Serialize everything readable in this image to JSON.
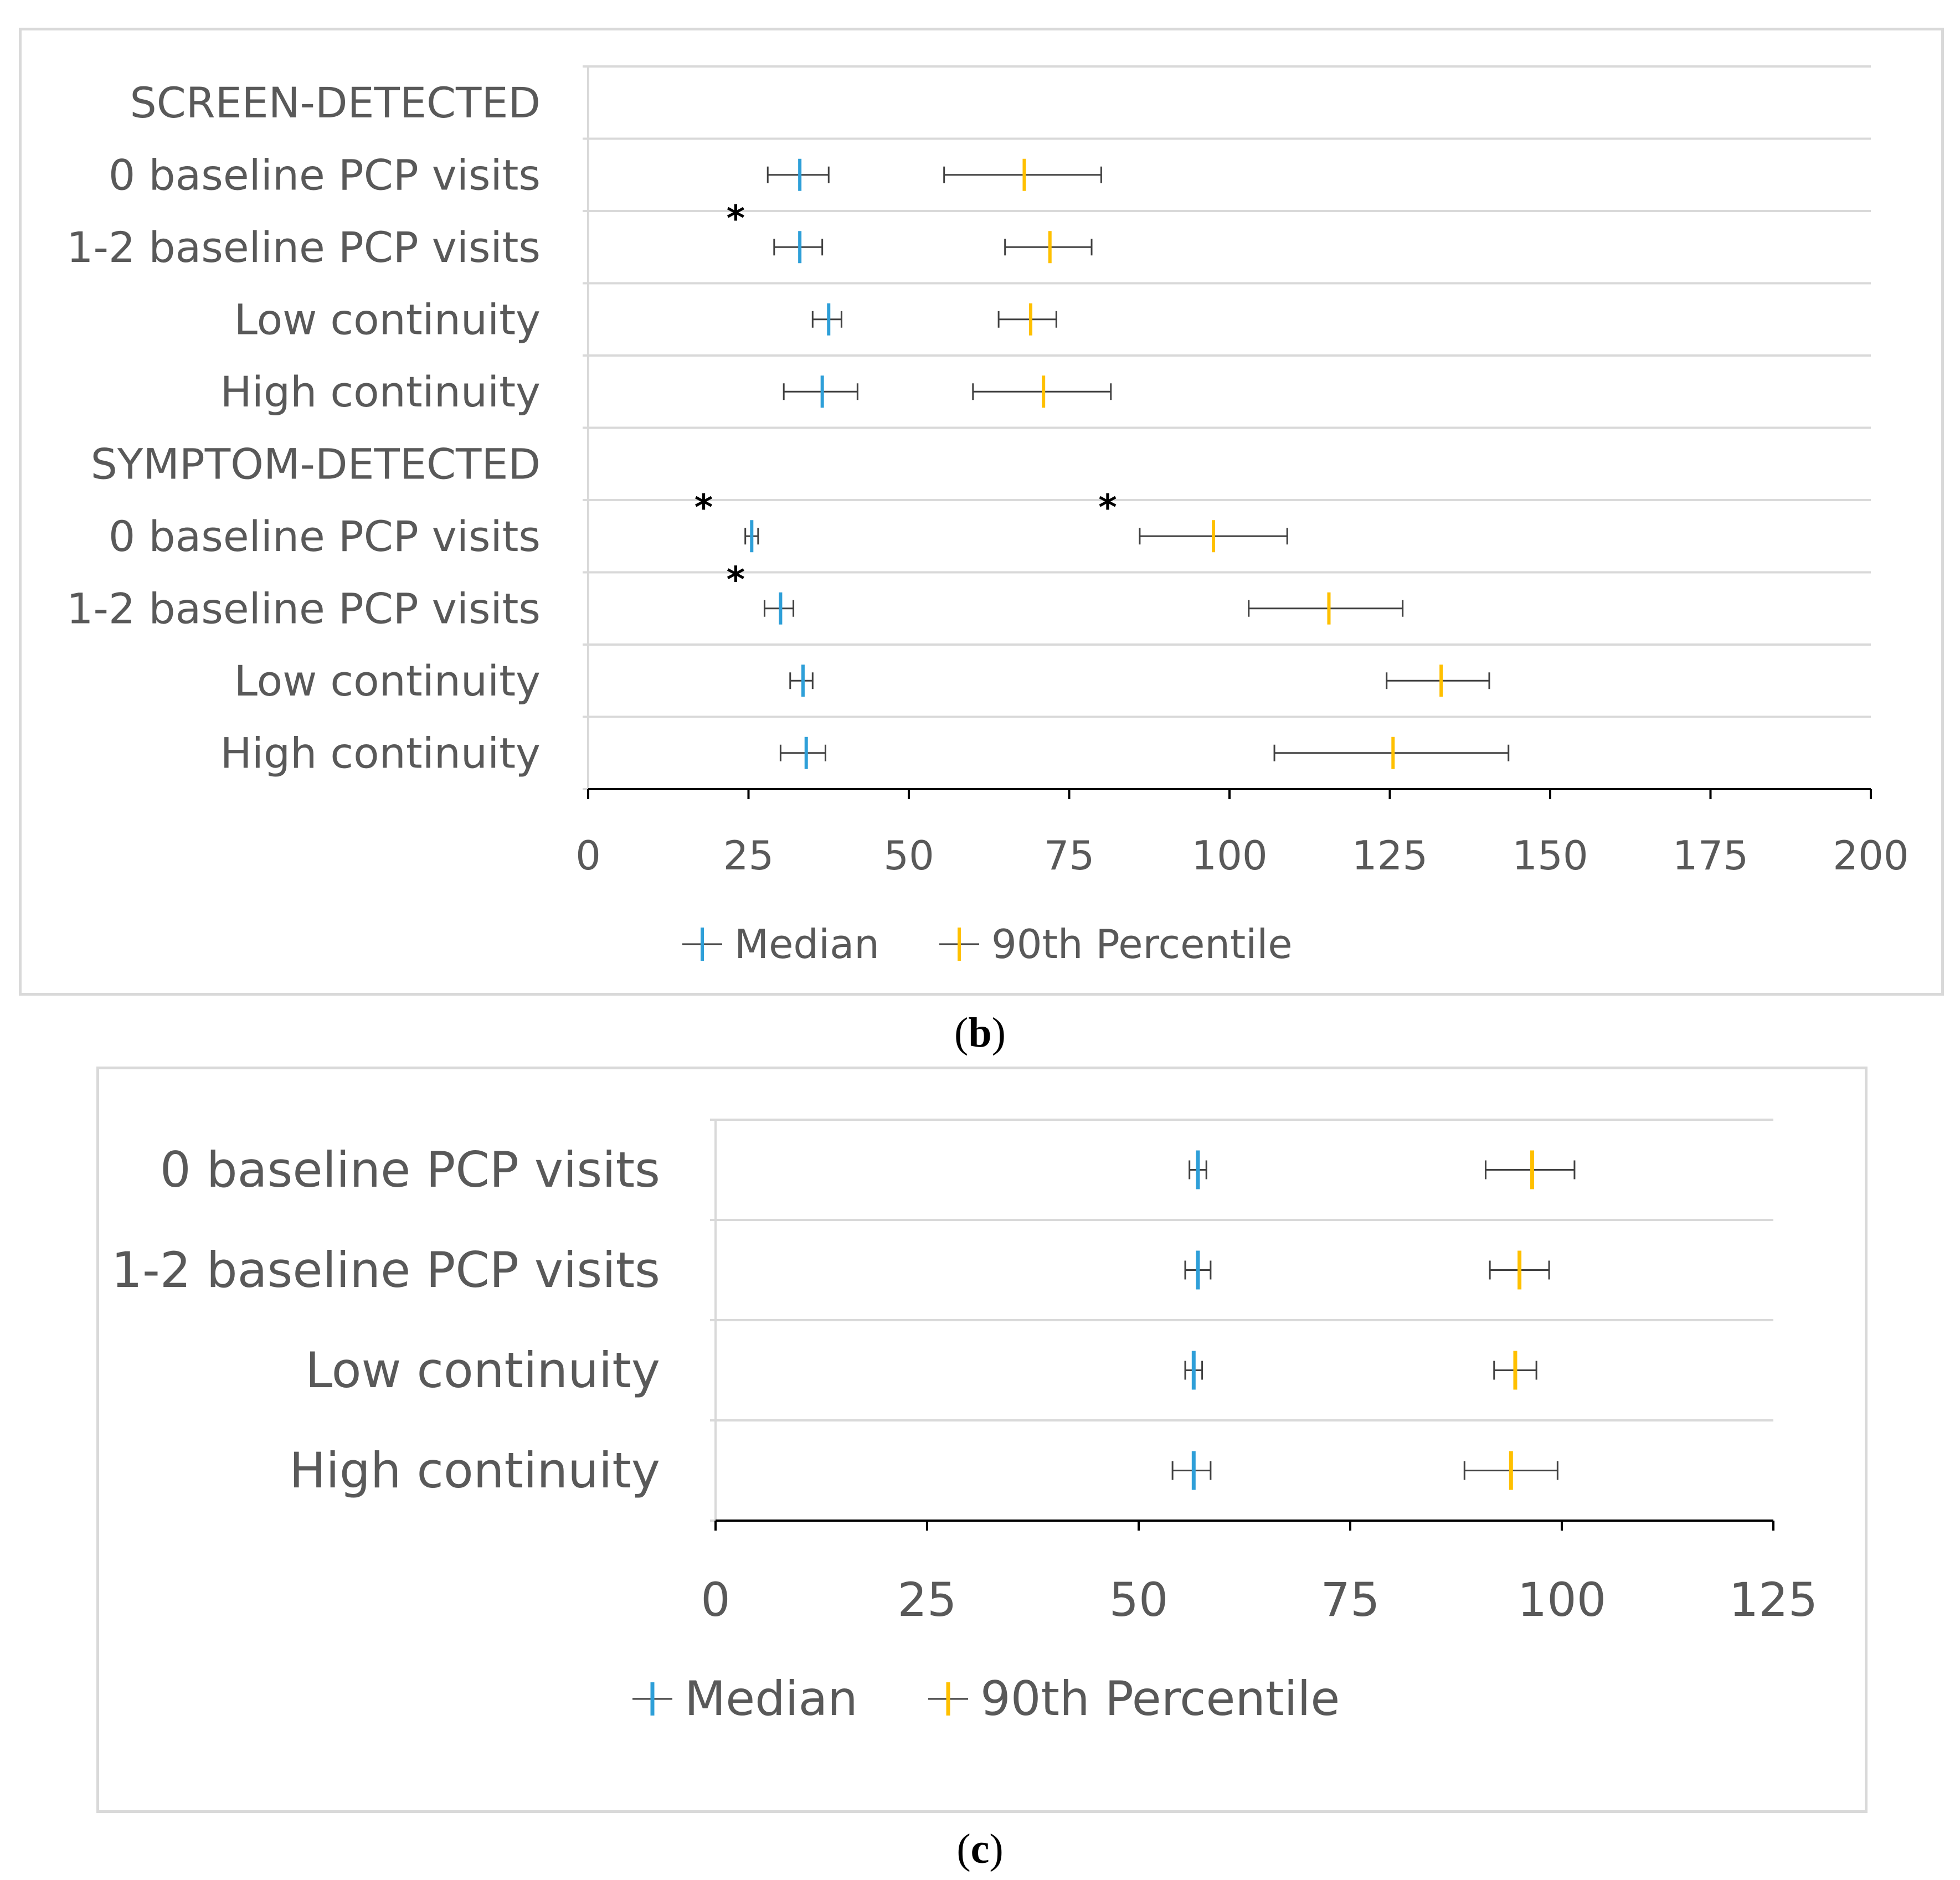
{
  "captions": {
    "b": "b",
    "c": "c"
  },
  "colors": {
    "median": "#2e9fd8",
    "percentile90": "#ffc000",
    "error_bar": "#404040",
    "grid": "#d9d9d9",
    "axis": "#000000",
    "text": "#595959"
  },
  "chart_data": [
    {
      "id": "b",
      "type": "scatter",
      "orientation": "horizontal",
      "categories": [
        "SCREEN-DETECTED",
        "0 baseline PCP visits",
        "1-2 baseline PCP visits",
        "Low continuity",
        "High continuity",
        "SYMPTOM-DETECTED",
        "0 baseline PCP visits",
        "1-2 baseline PCP visits",
        "Low continuity",
        "High continuity"
      ],
      "xlim": [
        0,
        200
      ],
      "xticks": [
        0,
        25,
        50,
        75,
        100,
        125,
        150,
        175,
        200
      ],
      "legend": {
        "position": "bottom-center",
        "entries": [
          "Median",
          "90th Percentile"
        ]
      },
      "series": [
        {
          "name": "Median",
          "values": [
            null,
            33,
            33,
            37.5,
            36.5,
            null,
            25.5,
            30,
            33.5,
            34
          ],
          "error_low": [
            null,
            28,
            29,
            35,
            30.5,
            null,
            24.5,
            27.5,
            31.5,
            30
          ],
          "error_high": [
            null,
            37.5,
            36.5,
            39.5,
            42,
            null,
            26.5,
            32,
            35,
            37
          ]
        },
        {
          "name": "90th Percentile",
          "values": [
            null,
            68,
            72,
            69,
            71,
            null,
            97.5,
            115.5,
            133,
            125.5
          ],
          "error_low": [
            null,
            55.5,
            65,
            64,
            60,
            null,
            86,
            103,
            124.5,
            107
          ],
          "error_high": [
            null,
            80,
            78.5,
            73,
            81.5,
            null,
            109,
            127,
            140.5,
            143.5
          ]
        }
      ],
      "annotations": [
        {
          "text": "*",
          "row": 2,
          "x": 23
        },
        {
          "text": "*",
          "row": 6,
          "x": 18
        },
        {
          "text": "*",
          "row": 6,
          "x": 81
        },
        {
          "text": "*",
          "row": 7,
          "x": 23
        }
      ]
    },
    {
      "id": "c",
      "type": "scatter",
      "orientation": "horizontal",
      "categories": [
        "0 baseline PCP visits",
        "1-2 baseline PCP visits",
        "Low continuity",
        "High continuity"
      ],
      "xlim": [
        0,
        125
      ],
      "xticks": [
        0,
        25,
        50,
        75,
        100,
        125
      ],
      "legend": {
        "position": "bottom-center",
        "entries": [
          "Median",
          "90th Percentile"
        ]
      },
      "series": [
        {
          "name": "Median",
          "values": [
            57,
            57,
            56.5,
            56.5
          ],
          "error_low": [
            56,
            55.5,
            55.5,
            54
          ],
          "error_high": [
            58,
            58.5,
            57.5,
            58.5
          ]
        },
        {
          "name": "90th Percentile",
          "values": [
            96.5,
            95,
            94.5,
            94
          ],
          "error_low": [
            91,
            91.5,
            92,
            88.5
          ],
          "error_high": [
            101.5,
            98.5,
            97,
            99.5
          ]
        }
      ],
      "annotations": []
    }
  ]
}
